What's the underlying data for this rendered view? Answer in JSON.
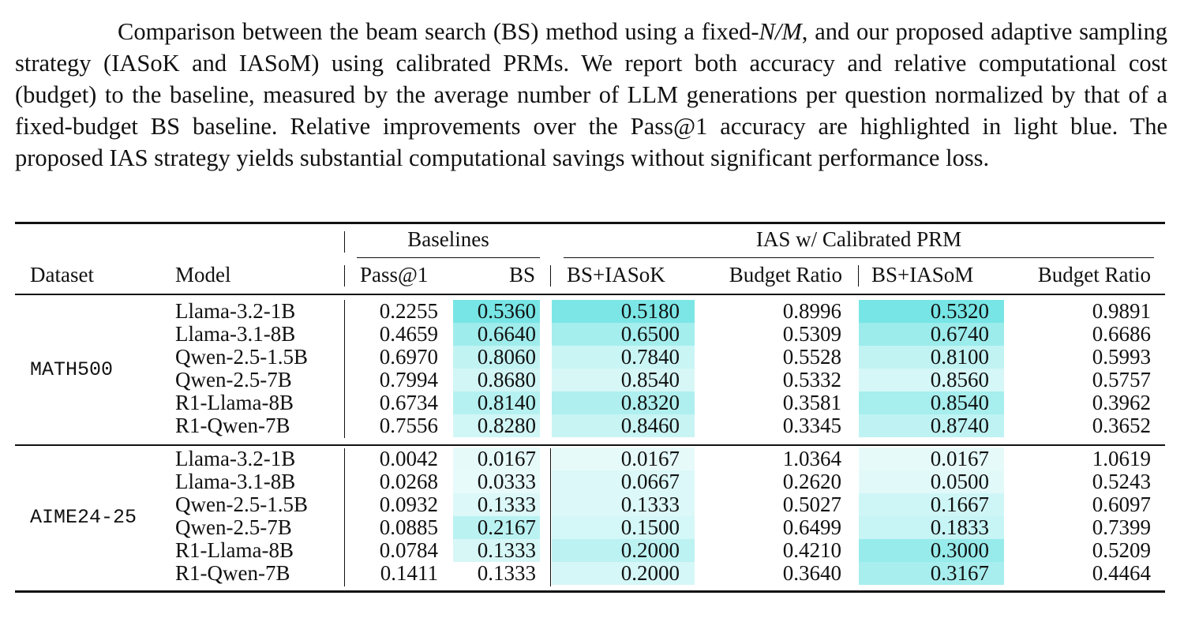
{
  "caption": {
    "text_before": "Comparison between the beam search (BS) method using a fixed-",
    "math": "N/M",
    "text_after": ", and our proposed adaptive sampling strategy (IASoK and IASoM) using calibrated PRMs. We report both accuracy and relative computational cost (budget) to the baseline, measured by the average number of LLM generations per question normalized by that of a fixed-budget BS baseline. Relative improvements over the Pass@1 accuracy are highlighted in light blue. The proposed IAS strategy yields substantial computational savings without significant performance loss."
  },
  "table": {
    "group_headers": {
      "baselines": "Baselines",
      "ias": "IAS w/ Calibrated PRM"
    },
    "columns": [
      "Dataset",
      "Model",
      "Pass@1",
      "BS",
      "BS+IASoK",
      "Budget Ratio",
      "BS+IASoM",
      "Budget Ratio"
    ],
    "highlight_color": "#5fe0e0",
    "sections": [
      {
        "dataset": "MATH500",
        "rows": [
          {
            "model": "Llama-3.2-1B",
            "pass1": "0.2255",
            "bs": "0.5360",
            "bsk": "0.5180",
            "rk": "0.8996",
            "bsm": "0.5320",
            "rm": "0.9891"
          },
          {
            "model": "Llama-3.1-8B",
            "pass1": "0.4659",
            "bs": "0.6640",
            "bsk": "0.6500",
            "rk": "0.5309",
            "bsm": "0.6740",
            "rm": "0.6686"
          },
          {
            "model": "Qwen-2.5-1.5B",
            "pass1": "0.6970",
            "bs": "0.8060",
            "bsk": "0.7840",
            "rk": "0.5528",
            "bsm": "0.8100",
            "rm": "0.5993"
          },
          {
            "model": "Qwen-2.5-7B",
            "pass1": "0.7994",
            "bs": "0.8680",
            "bsk": "0.8540",
            "rk": "0.5332",
            "bsm": "0.8560",
            "rm": "0.5757"
          },
          {
            "model": "R1-Llama-8B",
            "pass1": "0.6734",
            "bs": "0.8140",
            "bsk": "0.8320",
            "rk": "0.3581",
            "bsm": "0.8540",
            "rm": "0.3962"
          },
          {
            "model": "R1-Qwen-7B",
            "pass1": "0.7556",
            "bs": "0.8280",
            "bsk": "0.8460",
            "rk": "0.3345",
            "bsm": "0.8740",
            "rm": "0.3652"
          }
        ]
      },
      {
        "dataset": "AIME24-25",
        "rows": [
          {
            "model": "Llama-3.2-1B",
            "pass1": "0.0042",
            "bs": "0.0167",
            "bsk": "0.0167",
            "rk": "1.0364",
            "bsm": "0.0167",
            "rm": "1.0619"
          },
          {
            "model": "Llama-3.1-8B",
            "pass1": "0.0268",
            "bs": "0.0333",
            "bsk": "0.0667",
            "rk": "0.2620",
            "bsm": "0.0500",
            "rm": "0.5243"
          },
          {
            "model": "Qwen-2.5-1.5B",
            "pass1": "0.0932",
            "bs": "0.1333",
            "bsk": "0.1333",
            "rk": "0.5027",
            "bsm": "0.1667",
            "rm": "0.6097"
          },
          {
            "model": "Qwen-2.5-7B",
            "pass1": "0.0885",
            "bs": "0.2167",
            "bsk": "0.1500",
            "rk": "0.6499",
            "bsm": "0.1833",
            "rm": "0.7399"
          },
          {
            "model": "R1-Llama-8B",
            "pass1": "0.0784",
            "bs": "0.1333",
            "bsk": "0.2000",
            "rk": "0.4210",
            "bsm": "0.3000",
            "rm": "0.5209"
          },
          {
            "model": "R1-Qwen-7B",
            "pass1": "0.1411",
            "bs": "0.1333",
            "bsk": "0.2000",
            "rk": "0.3640",
            "bsm": "0.3167",
            "rm": "0.4464"
          }
        ]
      }
    ]
  }
}
